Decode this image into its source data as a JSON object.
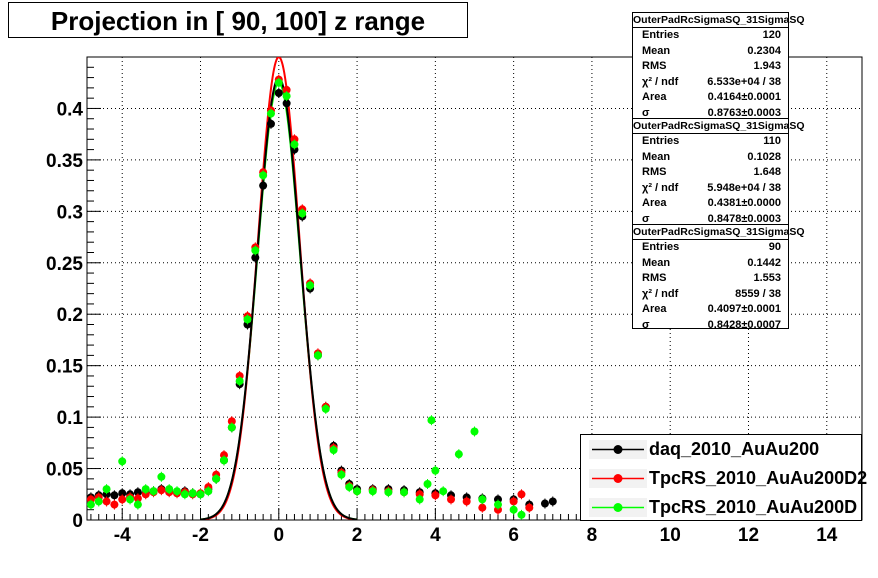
{
  "title": "Projection in [  90, 100] z range",
  "colors": {
    "daq": "#000000",
    "rs1": "#ff0000",
    "rs2": "#00ff00"
  },
  "stats": [
    {
      "title": "OuterPadRcSigmaSQ_31SigmaSQ",
      "entries": "120",
      "mean": "0.2304",
      "rms": "1.943",
      "chi2": "6.533e+04 / 38",
      "area": "0.4164±0.0001",
      "sigma": "0.8763±0.0003"
    },
    {
      "title": "OuterPadRcSigmaSQ_31SigmaSQ",
      "entries": "110",
      "mean": "0.1028",
      "rms": "1.648",
      "chi2": "5.948e+04 / 38",
      "area": "0.4381±0.0000",
      "sigma": "0.8478±0.0003"
    },
    {
      "title": "OuterPadRcSigmaSQ_31SigmaSQ",
      "entries": "90",
      "mean": "0.1442",
      "rms": "1.553",
      "chi2": "8559 / 38",
      "area": "0.4097±0.0001",
      "sigma": "0.8428±0.0007"
    }
  ],
  "stat_labels": {
    "entries": "Entries",
    "mean": "Mean",
    "rms": "RMS",
    "chi2": "χ² / ndf",
    "area": "Area",
    "sigma": "σ"
  },
  "legend": [
    {
      "label": "daq_2010_AuAu200",
      "color": "#000000"
    },
    {
      "label": "TpcRS_2010_AuAu200D2",
      "color": "#ff0000"
    },
    {
      "label": "TpcRS_2010_AuAu200D",
      "color": "#00ff00"
    }
  ],
  "chart_data": {
    "type": "scatter",
    "title": "Projection in [  90, 100] z range",
    "xlim": [
      -4.9,
      14.9
    ],
    "ylim": [
      0,
      0.45
    ],
    "x_ticks": [
      -4,
      -2,
      0,
      2,
      4,
      6,
      8,
      10,
      12,
      14
    ],
    "x_tick_labels": [
      "-4",
      "-2",
      "0",
      "2",
      "4",
      "6",
      "8",
      "10",
      "12",
      "14"
    ],
    "y_ticks": [
      0,
      0.05,
      0.1,
      0.15,
      0.2,
      0.25,
      0.3,
      0.35,
      0.4
    ],
    "y_tick_labels": [
      "0",
      "0.05",
      "0.1",
      "0.15",
      "0.2",
      "0.25",
      "0.3",
      "0.35",
      "0.4"
    ],
    "grid": true,
    "series": [
      {
        "name": "daq_2010_AuAu200",
        "color": "#000000",
        "fit_amplitude": 0.43,
        "fit_sigma": 0.545,
        "points": [
          [
            -4.8,
            0.022
          ],
          [
            -4.6,
            0.024
          ],
          [
            -4.4,
            0.025
          ],
          [
            -4.2,
            0.024
          ],
          [
            -4.0,
            0.026
          ],
          [
            -3.8,
            0.025
          ],
          [
            -3.6,
            0.027
          ],
          [
            -3.4,
            0.026
          ],
          [
            -3.2,
            0.028
          ],
          [
            -3.0,
            0.03
          ],
          [
            -2.8,
            0.028
          ],
          [
            -2.6,
            0.027
          ],
          [
            -2.4,
            0.028
          ],
          [
            -2.2,
            0.026
          ],
          [
            -2.0,
            0.025
          ],
          [
            -1.8,
            0.03
          ],
          [
            -1.6,
            0.04
          ],
          [
            -1.4,
            0.058
          ],
          [
            -1.2,
            0.09
          ],
          [
            -1.0,
            0.132
          ],
          [
            -0.8,
            0.19
          ],
          [
            -0.6,
            0.255
          ],
          [
            -0.4,
            0.325
          ],
          [
            -0.2,
            0.385
          ],
          [
            0.0,
            0.415
          ],
          [
            0.2,
            0.405
          ],
          [
            0.4,
            0.36
          ],
          [
            0.6,
            0.295
          ],
          [
            0.8,
            0.225
          ],
          [
            1.0,
            0.16
          ],
          [
            1.2,
            0.11
          ],
          [
            1.4,
            0.072
          ],
          [
            1.6,
            0.048
          ],
          [
            1.8,
            0.035
          ],
          [
            2.0,
            0.03
          ],
          [
            2.4,
            0.03
          ],
          [
            2.8,
            0.03
          ],
          [
            3.2,
            0.029
          ],
          [
            3.6,
            0.027
          ],
          [
            4.0,
            0.026
          ],
          [
            4.4,
            0.024
          ],
          [
            4.8,
            0.022
          ],
          [
            5.2,
            0.021
          ],
          [
            5.6,
            0.02
          ],
          [
            6.0,
            0.02
          ],
          [
            6.4,
            0.015
          ],
          [
            6.8,
            0.016
          ],
          [
            7.0,
            0.018
          ]
        ]
      },
      {
        "name": "TpcRS_2010_AuAu200D2",
        "color": "#ff0000",
        "fit_amplitude": 0.45,
        "fit_sigma": 0.53,
        "points": [
          [
            -4.8,
            0.02
          ],
          [
            -4.6,
            0.022
          ],
          [
            -4.4,
            0.018
          ],
          [
            -4.2,
            0.015
          ],
          [
            -4.0,
            0.02
          ],
          [
            -3.8,
            0.022
          ],
          [
            -3.6,
            0.021
          ],
          [
            -3.4,
            0.025
          ],
          [
            -3.2,
            0.027
          ],
          [
            -3.0,
            0.029
          ],
          [
            -2.8,
            0.027
          ],
          [
            -2.6,
            0.026
          ],
          [
            -2.4,
            0.027
          ],
          [
            -2.2,
            0.025
          ],
          [
            -2.0,
            0.026
          ],
          [
            -1.8,
            0.032
          ],
          [
            -1.6,
            0.044
          ],
          [
            -1.4,
            0.063
          ],
          [
            -1.2,
            0.096
          ],
          [
            -1.0,
            0.14
          ],
          [
            -0.8,
            0.198
          ],
          [
            -0.6,
            0.265
          ],
          [
            -0.4,
            0.338
          ],
          [
            -0.2,
            0.398
          ],
          [
            0.0,
            0.428
          ],
          [
            0.2,
            0.418
          ],
          [
            0.4,
            0.37
          ],
          [
            0.6,
            0.302
          ],
          [
            0.8,
            0.23
          ],
          [
            1.0,
            0.162
          ],
          [
            1.2,
            0.11
          ],
          [
            1.4,
            0.07
          ],
          [
            1.6,
            0.046
          ],
          [
            1.8,
            0.033
          ],
          [
            2.0,
            0.028
          ],
          [
            2.4,
            0.029
          ],
          [
            2.8,
            0.028
          ],
          [
            3.2,
            0.027
          ],
          [
            3.6,
            0.025
          ],
          [
            4.0,
            0.024
          ],
          [
            4.4,
            0.02
          ],
          [
            4.8,
            0.018
          ],
          [
            5.2,
            0.012
          ],
          [
            5.6,
            0.01
          ],
          [
            6.0,
            0.018
          ],
          [
            6.2,
            0.025
          ],
          [
            6.4,
            0.012
          ]
        ]
      },
      {
        "name": "TpcRS_2010_AuAu200D",
        "color": "#00ff00",
        "fit_amplitude": 0.425,
        "fit_sigma": 0.545,
        "points": [
          [
            -4.8,
            0.015
          ],
          [
            -4.6,
            0.018
          ],
          [
            -4.4,
            0.03
          ],
          [
            -4.0,
            0.057
          ],
          [
            -3.8,
            0.02
          ],
          [
            -3.6,
            0.015
          ],
          [
            -3.4,
            0.03
          ],
          [
            -3.2,
            0.028
          ],
          [
            -3.0,
            0.042
          ],
          [
            -2.8,
            0.03
          ],
          [
            -2.6,
            0.028
          ],
          [
            -2.4,
            0.025
          ],
          [
            -2.2,
            0.026
          ],
          [
            -2.0,
            0.025
          ],
          [
            -1.8,
            0.028
          ],
          [
            -1.6,
            0.04
          ],
          [
            -1.4,
            0.058
          ],
          [
            -1.2,
            0.09
          ],
          [
            -1.0,
            0.135
          ],
          [
            -0.8,
            0.195
          ],
          [
            -0.6,
            0.262
          ],
          [
            -0.4,
            0.335
          ],
          [
            -0.2,
            0.395
          ],
          [
            0.0,
            0.425
          ],
          [
            0.2,
            0.412
          ],
          [
            0.4,
            0.365
          ],
          [
            0.6,
            0.298
          ],
          [
            0.8,
            0.228
          ],
          [
            1.0,
            0.16
          ],
          [
            1.2,
            0.108
          ],
          [
            1.4,
            0.068
          ],
          [
            1.6,
            0.044
          ],
          [
            1.8,
            0.032
          ],
          [
            2.0,
            0.028
          ],
          [
            2.4,
            0.028
          ],
          [
            2.8,
            0.027
          ],
          [
            3.2,
            0.027
          ],
          [
            3.6,
            0.02
          ],
          [
            3.8,
            0.035
          ],
          [
            3.9,
            0.097
          ],
          [
            4.0,
            0.048
          ],
          [
            4.2,
            0.028
          ],
          [
            4.6,
            0.064
          ],
          [
            5.0,
            0.086
          ],
          [
            5.2,
            0.02
          ],
          [
            5.6,
            0.015
          ],
          [
            6.0,
            0.01
          ],
          [
            6.2,
            0.005
          ]
        ]
      }
    ]
  }
}
